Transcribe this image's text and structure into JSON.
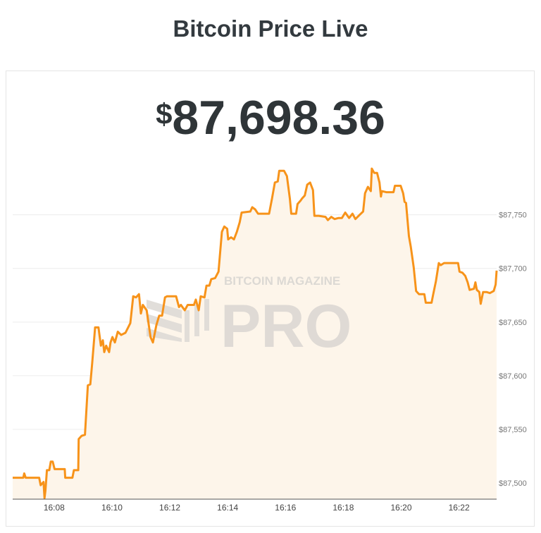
{
  "header": {
    "title": "Bitcoin Price Live"
  },
  "price": {
    "currency_symbol": "$",
    "value": "87,698.36"
  },
  "watermark": {
    "line1": "BITCOIN MAGAZINE",
    "line2": "PRO"
  },
  "colors": {
    "line": "#f7931a",
    "fill": "#fdf5ea",
    "grid": "#ececec",
    "baseline": "#555555"
  },
  "chart_data": {
    "type": "area",
    "xlabel": "",
    "ylabel": "",
    "xlim": [
      "16:06:34",
      "16:23:18"
    ],
    "ylim": [
      87485,
      87799
    ],
    "grid": true,
    "y_axis_position": "right",
    "x_ticks": [
      "16:08",
      "16:10",
      "16:12",
      "16:14",
      "16:16",
      "16:18",
      "16:20",
      "16:22"
    ],
    "y_ticks": [
      87500,
      87550,
      87600,
      87650,
      87700,
      87750
    ],
    "y_tick_labels": [
      "$87,500",
      "$87,550",
      "$87,600",
      "$87,650",
      "$87,700",
      "$87,750"
    ],
    "series": [
      {
        "x": [
          "16:06:34",
          "16:06:56",
          "16:06:58",
          "16:07:01",
          "16:07:29",
          "16:07:32",
          "16:07:38",
          "16:07:40",
          "16:07:42",
          "16:07:45",
          "16:07:50",
          "16:07:53",
          "16:07:57",
          "16:08:01",
          "16:08:22",
          "16:08:23",
          "16:08:38",
          "16:08:41",
          "16:08:50",
          "16:08:51",
          "16:08:57",
          "16:09:04",
          "16:09:10",
          "16:09:15",
          "16:09:19",
          "16:09:25",
          "16:09:32",
          "16:09:37",
          "16:09:41",
          "16:09:44",
          "16:09:48",
          "16:09:54",
          "16:09:57",
          "16:10:01",
          "16:10:06",
          "16:10:12",
          "16:10:19",
          "16:10:28",
          "16:10:38",
          "16:10:44",
          "16:10:50",
          "16:10:56",
          "16:11:00",
          "16:11:04",
          "16:11:12",
          "16:11:20",
          "16:11:25",
          "16:11:32",
          "16:11:38",
          "16:11:44",
          "16:11:50",
          "16:11:54",
          "16:12:13",
          "16:12:19",
          "16:12:23",
          "16:12:31",
          "16:12:37",
          "16:12:50",
          "16:12:54",
          "16:13:00",
          "16:13:04",
          "16:13:12",
          "16:13:16",
          "16:13:22",
          "16:13:26",
          "16:13:34",
          "16:13:41",
          "16:13:48",
          "16:13:53",
          "16:13:59",
          "16:14:01",
          "16:14:07",
          "16:14:13",
          "16:14:19",
          "16:14:25",
          "16:14:29",
          "16:14:47",
          "16:14:51",
          "16:14:57",
          "16:15:03",
          "16:15:26",
          "16:15:32",
          "16:15:38",
          "16:15:44",
          "16:15:47",
          "16:15:57",
          "16:16:03",
          "16:16:09",
          "16:16:12",
          "16:16:22",
          "16:16:25",
          "16:16:31",
          "16:16:34",
          "16:16:40",
          "16:16:45",
          "16:16:51",
          "16:16:57",
          "16:17:00",
          "16:17:09",
          "16:17:23",
          "16:17:28",
          "16:17:35",
          "16:17:42",
          "16:17:50",
          "16:17:57",
          "16:18:04",
          "16:18:12",
          "16:18:19",
          "16:18:25",
          "16:18:34",
          "16:18:41",
          "16:18:45",
          "16:18:51",
          "16:18:57",
          "16:18:59",
          "16:19:04",
          "16:19:10",
          "16:19:15",
          "16:19:18",
          "16:19:20",
          "16:19:29",
          "16:19:44",
          "16:19:47",
          "16:19:59",
          "16:20:04",
          "16:20:07",
          "16:20:10",
          "16:20:16",
          "16:20:20",
          "16:20:26",
          "16:20:31",
          "16:20:37",
          "16:20:48",
          "16:20:51",
          "16:21:03",
          "16:21:06",
          "16:21:12",
          "16:21:18",
          "16:21:22",
          "16:21:29",
          "16:21:58",
          "16:22:01",
          "16:22:07",
          "16:22:13",
          "16:22:18",
          "16:22:22",
          "16:22:31",
          "16:22:34",
          "16:22:37",
          "16:22:42",
          "16:22:45",
          "16:22:50",
          "16:22:57",
          "16:23:04",
          "16:23:12",
          "16:23:16",
          "16:23:18"
        ],
        "values": [
          87505,
          87505,
          87509,
          87505,
          87505,
          87498,
          87501,
          87486,
          87493,
          87512,
          87512,
          87520,
          87520,
          87513,
          87513,
          87505,
          87505,
          87512,
          87512,
          87541,
          87544,
          87545,
          87591,
          87592,
          87612,
          87645,
          87645,
          87628,
          87633,
          87622,
          87628,
          87622,
          87631,
          87636,
          87631,
          87641,
          87638,
          87640,
          87649,
          87674,
          87673,
          87676,
          87658,
          87666,
          87661,
          87636,
          87631,
          87647,
          87656,
          87656,
          87673,
          87674,
          87674,
          87664,
          87666,
          87661,
          87666,
          87666,
          87671,
          87661,
          87674,
          87673,
          87684,
          87684,
          87690,
          87691,
          87697,
          87734,
          87739,
          87737,
          87727,
          87729,
          87727,
          87734,
          87743,
          87752,
          87753,
          87757,
          87755,
          87751,
          87751,
          87765,
          87780,
          87781,
          87791,
          87791,
          87786,
          87765,
          87751,
          87751,
          87760,
          87763,
          87765,
          87768,
          87778,
          87780,
          87773,
          87749,
          87749,
          87748,
          87745,
          87748,
          87746,
          87747,
          87747,
          87752,
          87747,
          87751,
          87746,
          87750,
          87753,
          87770,
          87776,
          87772,
          87793,
          87789,
          87789,
          87780,
          87767,
          87772,
          87771,
          87771,
          87777,
          87777,
          87770,
          87762,
          87761,
          87730,
          87720,
          87701,
          87679,
          87676,
          87676,
          87668,
          87668,
          87675,
          87688,
          87705,
          87703,
          87705,
          87705,
          87697,
          87696,
          87693,
          87687,
          87680,
          87681,
          87687,
          87680,
          87678,
          87667,
          87678,
          87678,
          87677,
          87679,
          87685,
          87698
        ]
      }
    ]
  }
}
